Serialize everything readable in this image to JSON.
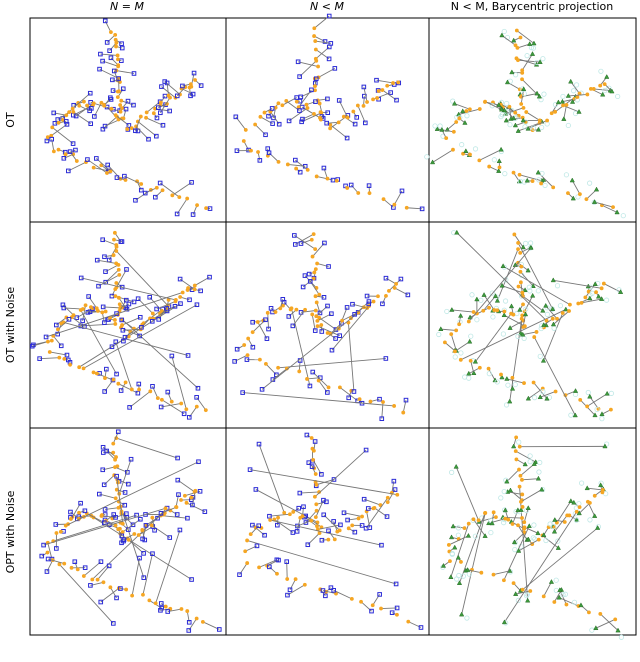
{
  "columns": [
    "N = M",
    "N < M",
    "N < M, Barycentric projection"
  ],
  "rows": [
    "OT",
    "OT with Noise",
    "OPT with Noise"
  ]
}
